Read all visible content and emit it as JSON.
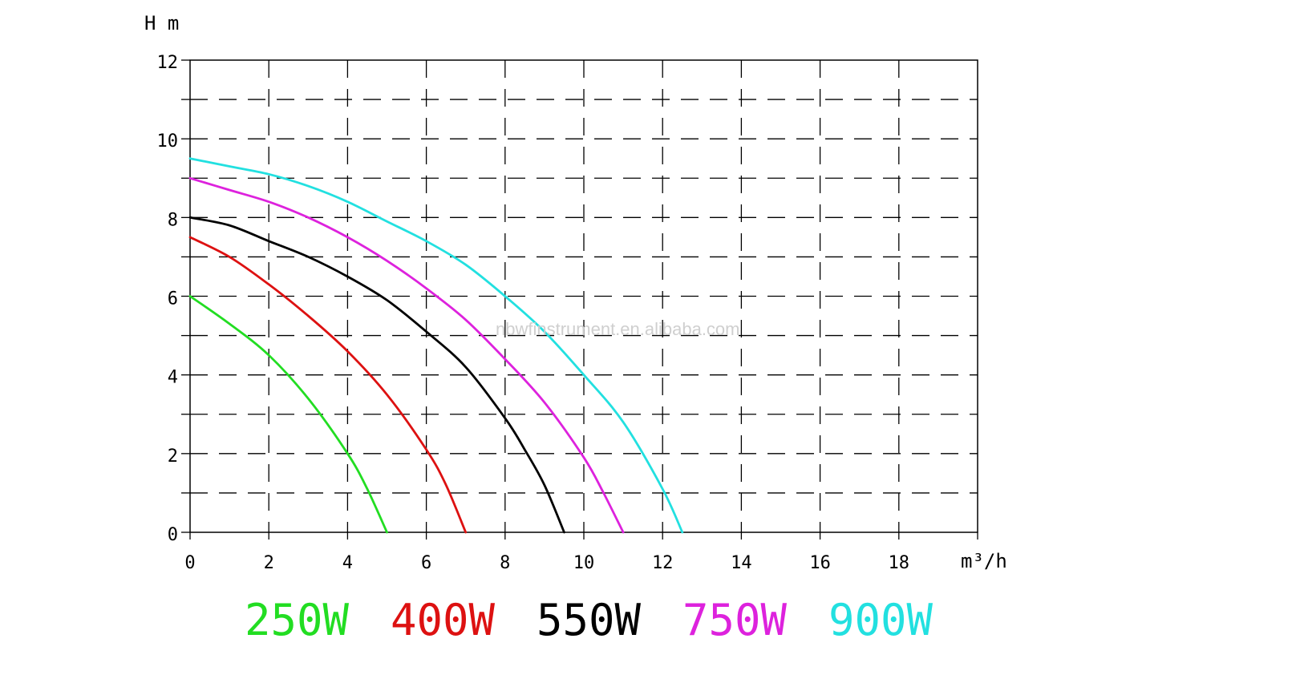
{
  "chart_data": {
    "type": "line",
    "xlabel": "m³/h",
    "ylabel": "H m",
    "xlim": [
      0,
      20
    ],
    "ylim": [
      0,
      12
    ],
    "x_ticks": [
      0,
      2,
      4,
      6,
      8,
      10,
      12,
      14,
      16,
      18
    ],
    "y_ticks": [
      0,
      2,
      4,
      6,
      8,
      10,
      12
    ],
    "grid": true,
    "legend_position": "bottom",
    "watermark": "nbwfinstrument.en.alibaba.com",
    "series": [
      {
        "name": "250W",
        "color": "#22dd22",
        "x": [
          0,
          1,
          2,
          3,
          4,
          4.5,
          5
        ],
        "y": [
          6,
          5.3,
          4.5,
          3.4,
          2.0,
          1.1,
          0
        ]
      },
      {
        "name": "400W",
        "color": "#dd1111",
        "x": [
          0,
          1,
          2,
          3,
          4,
          5,
          6,
          6.5,
          7
        ],
        "y": [
          7.5,
          7.0,
          6.3,
          5.5,
          4.6,
          3.5,
          2.1,
          1.2,
          0
        ]
      },
      {
        "name": "550W",
        "color": "#000000",
        "x": [
          0,
          1,
          2,
          3,
          4,
          5,
          6,
          7,
          8,
          8.5,
          9,
          9.5
        ],
        "y": [
          8,
          7.8,
          7.4,
          7.0,
          6.5,
          5.9,
          5.1,
          4.2,
          2.9,
          2.1,
          1.2,
          0
        ]
      },
      {
        "name": "750W",
        "color": "#dd22dd",
        "x": [
          0,
          1,
          2,
          3,
          4,
          5,
          6,
          7,
          8,
          9,
          10,
          10.5,
          11
        ],
        "y": [
          9,
          8.7,
          8.4,
          8.0,
          7.5,
          6.9,
          6.2,
          5.4,
          4.4,
          3.3,
          1.9,
          1.0,
          0
        ]
      },
      {
        "name": "900W",
        "color": "#22e0e0",
        "x": [
          0,
          1,
          2,
          3,
          4,
          5,
          6,
          7,
          8,
          9,
          10,
          11,
          12,
          12.5
        ],
        "y": [
          9.5,
          9.3,
          9.1,
          8.8,
          8.4,
          7.9,
          7.4,
          6.8,
          6.0,
          5.1,
          4.0,
          2.8,
          1.1,
          0
        ]
      }
    ]
  }
}
